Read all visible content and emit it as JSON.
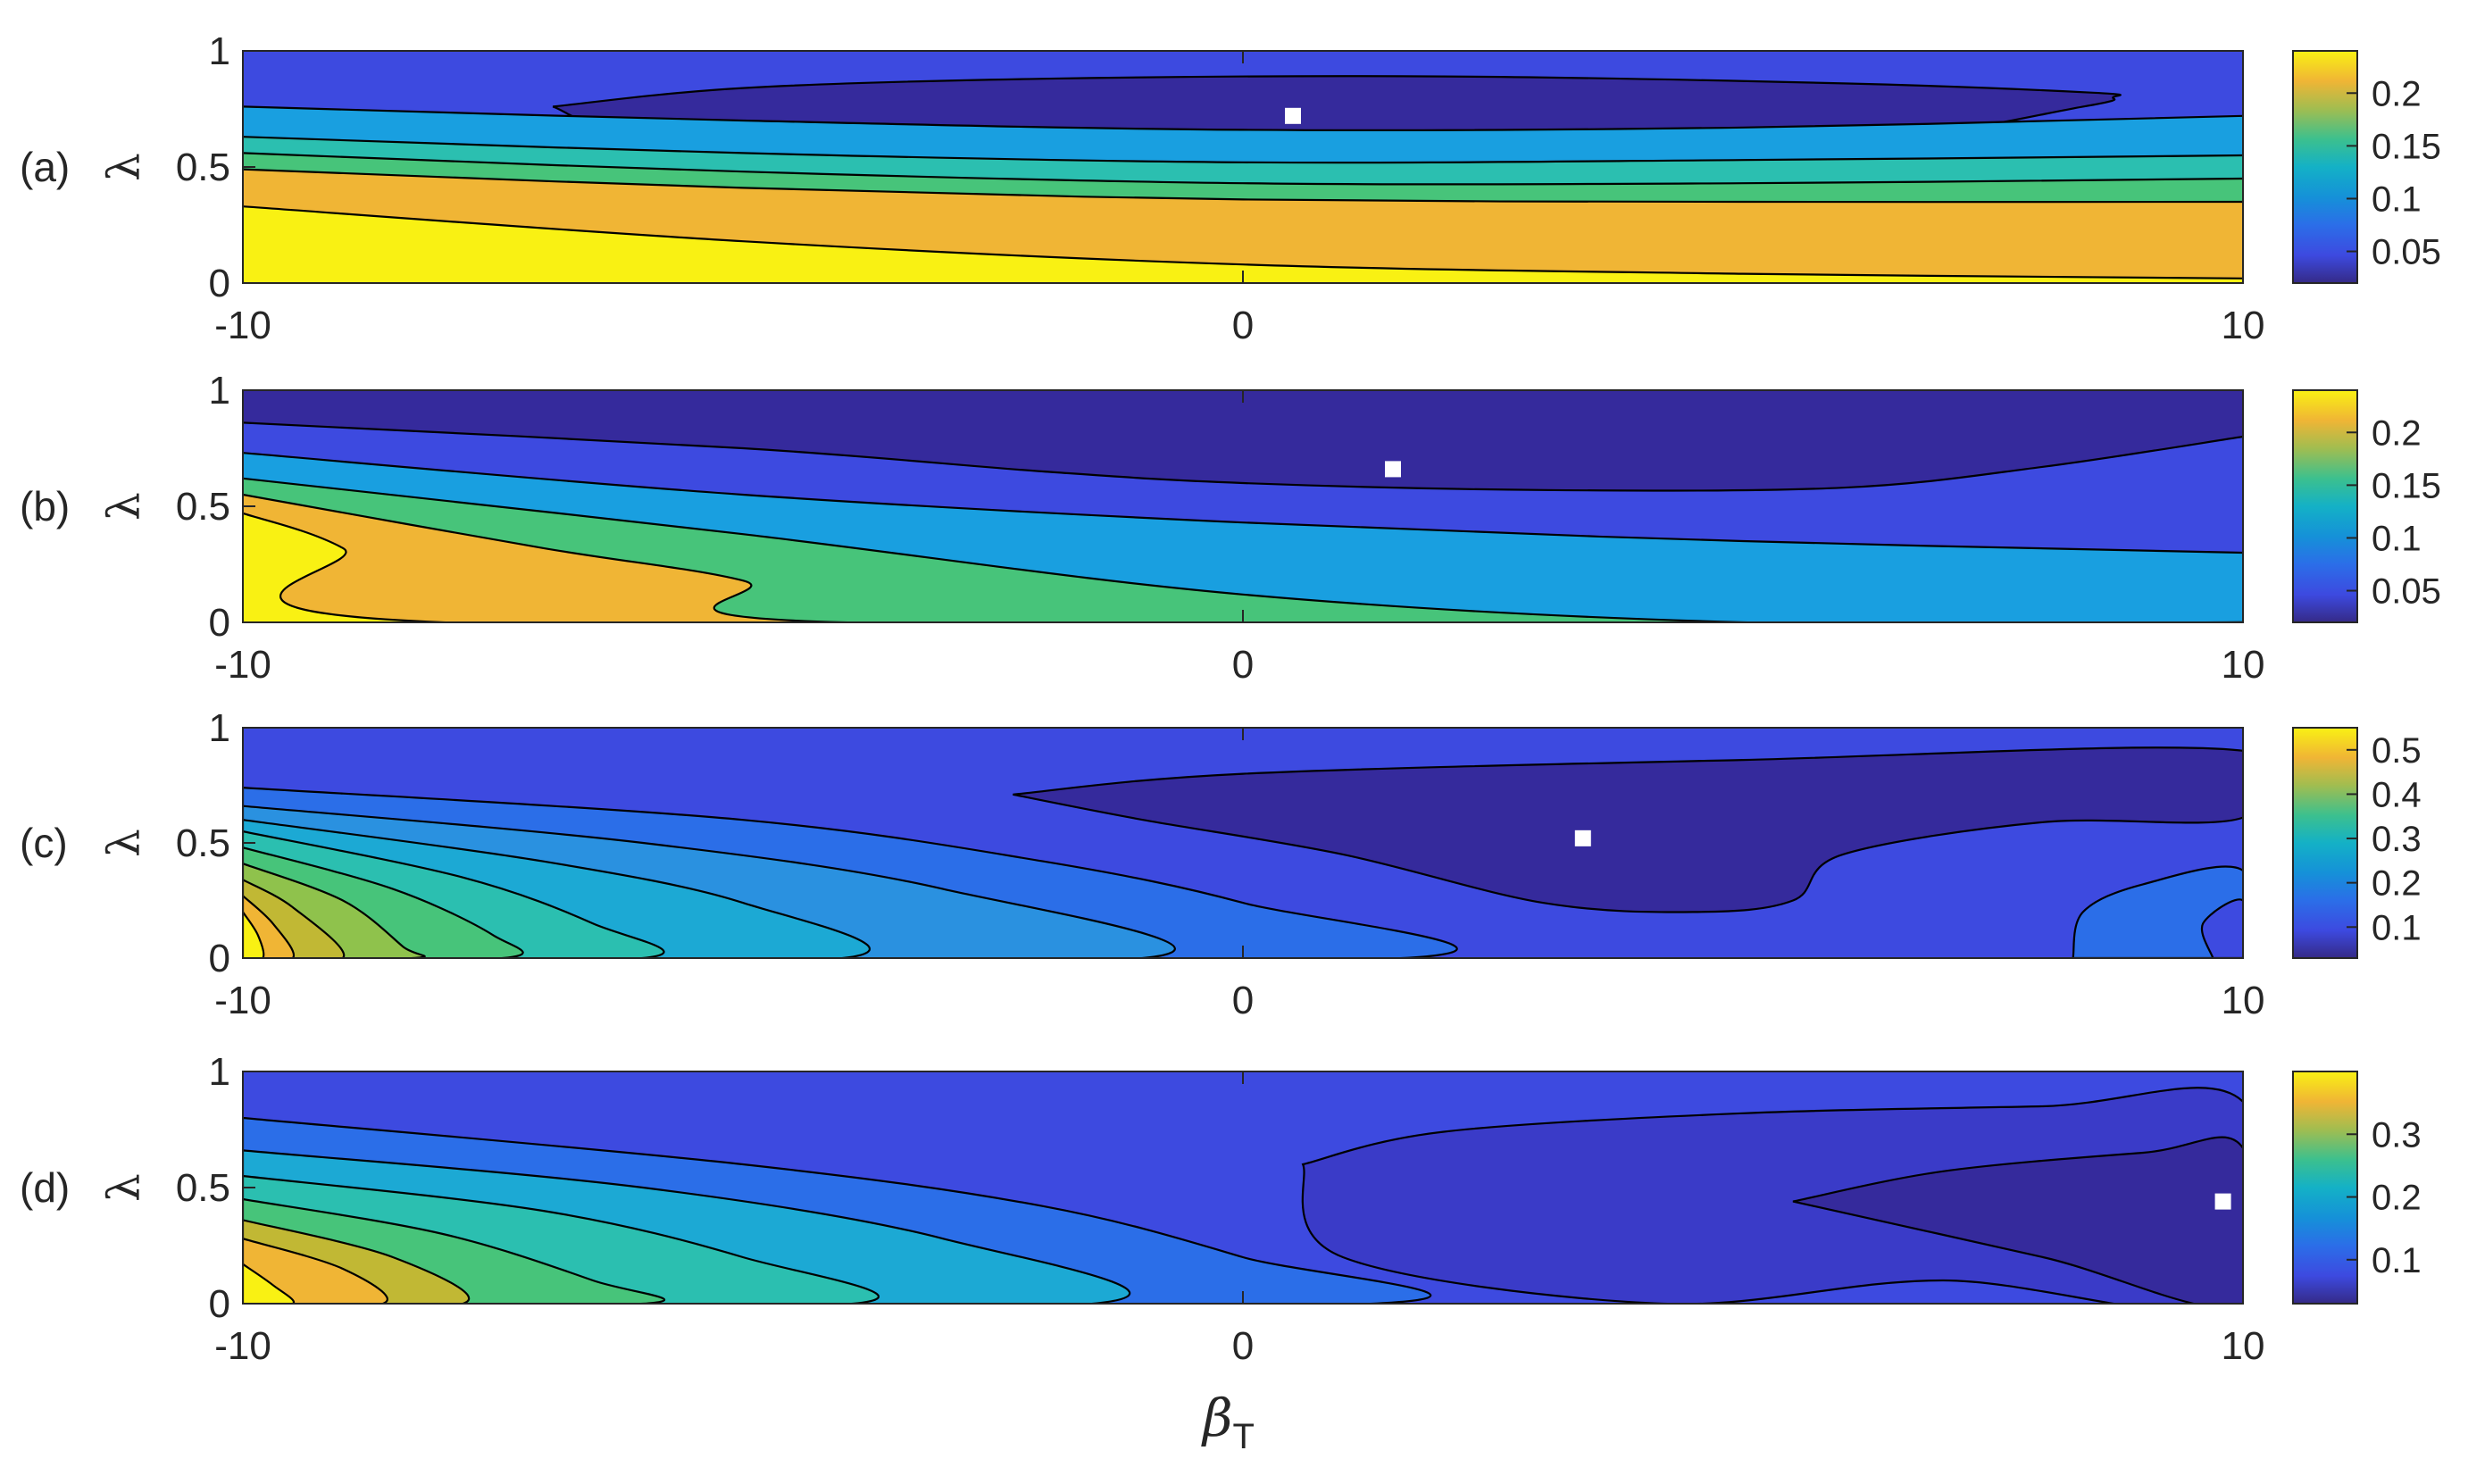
{
  "chart_data": [
    {
      "type": "contour",
      "panel_label": "(a)",
      "ylabel": "λ",
      "xlabel": "",
      "xlim": [
        -10,
        10
      ],
      "ylim": [
        0,
        1
      ],
      "xticks": [
        "-10",
        "0",
        "10"
      ],
      "yticks": [
        "0",
        "0.5",
        "1"
      ],
      "colorbar_ticks": [
        "0.05",
        "0.1",
        "0.15",
        "0.2"
      ],
      "colorbar_range": [
        0.02,
        0.24
      ],
      "marker": {
        "x": 0.5,
        "y": 0.72
      },
      "regions": [
        {
          "color": "#3d4ae0",
          "top": [
            [
              -10,
              1
            ],
            [
              10,
              1
            ]
          ]
        },
        {
          "color": "#352a9c",
          "top": [
            [
              -6.9,
              0.76
            ],
            [
              -5,
              0.84
            ],
            [
              -2,
              0.88
            ],
            [
              2,
              0.89
            ],
            [
              6,
              0.86
            ],
            [
              8.5,
              0.82
            ],
            [
              8.7,
              0.8
            ],
            [
              8.4,
              0.76
            ],
            [
              6,
              0.6
            ],
            [
              2,
              0.57
            ],
            [
              0,
              0.56
            ],
            [
              -3,
              0.57
            ],
            [
              -6,
              0.64
            ],
            [
              -6.9,
              0.76
            ]
          ],
          "closed": true
        },
        {
          "color": "#199fe0",
          "top": [
            [
              -10,
              0.76
            ],
            [
              -5,
              0.7
            ],
            [
              0,
              0.66
            ],
            [
              5,
              0.67
            ],
            [
              10,
              0.72
            ]
          ]
        },
        {
          "color": "#2bbfb0",
          "top": [
            [
              -10,
              0.63
            ],
            [
              -5,
              0.56
            ],
            [
              0,
              0.52
            ],
            [
              5,
              0.53
            ],
            [
              10,
              0.55
            ]
          ]
        },
        {
          "color": "#47c47a",
          "top": [
            [
              -10,
              0.56
            ],
            [
              -5,
              0.48
            ],
            [
              0,
              0.43
            ],
            [
              5,
              0.43
            ],
            [
              10,
              0.45
            ]
          ]
        },
        {
          "color": "#f0b535",
          "top": [
            [
              -10,
              0.49
            ],
            [
              -5,
              0.41
            ],
            [
              0,
              0.36
            ],
            [
              5,
              0.35
            ],
            [
              10,
              0.35
            ]
          ]
        },
        {
          "color": "#f9f113",
          "top": [
            [
              -10,
              0.33
            ],
            [
              -5,
              0.18
            ],
            [
              0,
              0.08
            ],
            [
              5,
              0.04
            ],
            [
              10,
              0.02
            ]
          ]
        }
      ]
    },
    {
      "type": "contour",
      "panel_label": "(b)",
      "ylabel": "λ",
      "xlabel": "",
      "xlim": [
        -10,
        10
      ],
      "ylim": [
        0,
        1
      ],
      "xticks": [
        "-10",
        "0",
        "10"
      ],
      "yticks": [
        "0",
        "0.5",
        "1"
      ],
      "colorbar_ticks": [
        "0.05",
        "0.1",
        "0.15",
        "0.2"
      ],
      "colorbar_range": [
        0.02,
        0.24
      ],
      "marker": {
        "x": 1.5,
        "y": 0.66
      },
      "regions": [
        {
          "color": "#352a9c",
          "top": [
            [
              -10,
              1
            ],
            [
              10,
              1
            ]
          ]
        },
        {
          "color": "#3d4ae0",
          "top": [
            [
              -10,
              0.86
            ],
            [
              -5,
              0.75
            ],
            [
              -2,
              0.65
            ],
            [
              0,
              0.6
            ],
            [
              3,
              0.57
            ],
            [
              6,
              0.58
            ],
            [
              8,
              0.67
            ],
            [
              10,
              0.8
            ]
          ]
        },
        {
          "color": "#199fe0",
          "top": [
            [
              -10,
              0.73
            ],
            [
              -5,
              0.55
            ],
            [
              0,
              0.43
            ],
            [
              5,
              0.35
            ],
            [
              10,
              0.3
            ]
          ]
        },
        {
          "color": "#47c47a",
          "top": [
            [
              -10,
              0.62
            ],
            [
              -5,
              0.38
            ],
            [
              0,
              0.12
            ],
            [
              5,
              0.0
            ],
            [
              10,
              0.0
            ]
          ]
        },
        {
          "color": "#f0b535",
          "top": [
            [
              -10,
              0.55
            ],
            [
              -7,
              0.32
            ],
            [
              -5,
              0.18
            ],
            [
              -4,
              0.0
            ],
            [
              10,
              0.0
            ]
          ]
        },
        {
          "color": "#f9f113",
          "top": [
            [
              -10,
              0.47
            ],
            [
              -9,
              0.32
            ],
            [
              -8,
              0.0
            ],
            [
              10,
              0.0
            ]
          ]
        }
      ]
    },
    {
      "type": "contour",
      "panel_label": "(c)",
      "ylabel": "λ",
      "xlabel": "",
      "xlim": [
        -10,
        10
      ],
      "ylim": [
        0,
        1
      ],
      "xticks": [
        "-10",
        "0",
        "10"
      ],
      "yticks": [
        "0",
        "0.5",
        "1"
      ],
      "colorbar_ticks": [
        "0.1",
        "0.2",
        "0.3",
        "0.4",
        "0.5"
      ],
      "colorbar_range": [
        0.03,
        0.55
      ],
      "marker": {
        "x": 3.4,
        "y": 0.52
      },
      "regions": [
        {
          "color": "#3d4ae0",
          "top": [
            [
              -10,
              1
            ],
            [
              10,
              1
            ]
          ]
        },
        {
          "color": "#352a9c",
          "top": [
            [
              -2.3,
              0.71
            ],
            [
              0,
              0.8
            ],
            [
              5,
              0.86
            ],
            [
              10,
              0.9
            ],
            [
              10,
              0.61
            ],
            [
              8,
              0.59
            ],
            [
              6,
              0.45
            ],
            [
              5.5,
              0.25
            ],
            [
              4.5,
              0.2
            ],
            [
              3,
              0.24
            ],
            [
              1,
              0.45
            ],
            [
              -1,
              0.6
            ],
            [
              -2.3,
              0.71
            ]
          ],
          "closed": true
        },
        {
          "color": "#2b6ee8",
          "top": [
            [
              8.3,
              0.0
            ],
            [
              8.4,
              0.2
            ],
            [
              9,
              0.32
            ],
            [
              10,
              0.38
            ],
            [
              10,
              0.0
            ]
          ],
          "closed": true
        },
        {
          "color": "#3d4ae0",
          "top": [
            [
              9.7,
              0.0
            ],
            [
              9.6,
              0.15
            ],
            [
              10,
              0.25
            ],
            [
              10,
              0.0
            ]
          ],
          "closed": true
        },
        {
          "color": "#2b6ee8",
          "top": [
            [
              -10,
              0.74
            ],
            [
              -5,
              0.6
            ],
            [
              -2,
              0.42
            ],
            [
              0,
              0.24
            ],
            [
              1.6,
              0.0
            ],
            [
              -10,
              0.0
            ]
          ],
          "closed": true
        },
        {
          "color": "#2a91e0",
          "top": [
            [
              -10,
              0.66
            ],
            [
              -6,
              0.5
            ],
            [
              -3,
              0.3
            ],
            [
              -1,
              0.0
            ],
            [
              -10,
              0.0
            ]
          ],
          "closed": true
        },
        {
          "color": "#1ca9d4",
          "top": [
            [
              -10,
              0.6
            ],
            [
              -7,
              0.42
            ],
            [
              -5,
              0.24
            ],
            [
              -4,
              0.0
            ],
            [
              -10,
              0.0
            ]
          ],
          "closed": true
        },
        {
          "color": "#2bbfb0",
          "top": [
            [
              -10,
              0.55
            ],
            [
              -7.8,
              0.35
            ],
            [
              -6.5,
              0.15
            ],
            [
              -6,
              0.0
            ],
            [
              -10,
              0.0
            ]
          ],
          "closed": true
        },
        {
          "color": "#47c47a",
          "top": [
            [
              -10,
              0.48
            ],
            [
              -8.5,
              0.3
            ],
            [
              -7.5,
              0.1
            ],
            [
              -7.4,
              0.0
            ],
            [
              -10,
              0.0
            ]
          ],
          "closed": true
        },
        {
          "color": "#8fc24c",
          "top": [
            [
              -10,
              0.41
            ],
            [
              -9,
              0.25
            ],
            [
              -8.4,
              0.05
            ],
            [
              -8.3,
              0.0
            ],
            [
              -10,
              0.0
            ]
          ],
          "closed": true
        },
        {
          "color": "#c1b834",
          "top": [
            [
              -10,
              0.34
            ],
            [
              -9.5,
              0.22
            ],
            [
              -9,
              0.0
            ],
            [
              -10,
              0.0
            ]
          ],
          "closed": true
        },
        {
          "color": "#f0b535",
          "top": [
            [
              -10,
              0.27
            ],
            [
              -9.7,
              0.15
            ],
            [
              -9.5,
              0.0
            ],
            [
              -10,
              0.0
            ]
          ],
          "closed": true
        },
        {
          "color": "#f9f113",
          "top": [
            [
              -10,
              0.2
            ],
            [
              -9.85,
              0.1
            ],
            [
              -9.8,
              0.0
            ],
            [
              -10,
              0.0
            ]
          ],
          "closed": true
        }
      ]
    },
    {
      "type": "contour",
      "panel_label": "(d)",
      "ylabel": "λ",
      "xlabel": "βT",
      "xlim": [
        -10,
        10
      ],
      "ylim": [
        0,
        1
      ],
      "xticks": [
        "-10",
        "0",
        "10"
      ],
      "yticks": [
        "0",
        "0.5",
        "1"
      ],
      "colorbar_ticks": [
        "0.1",
        "0.2",
        "0.3"
      ],
      "colorbar_range": [
        0.03,
        0.4
      ],
      "marker": {
        "x": 9.8,
        "y": 0.44
      },
      "regions": [
        {
          "color": "#3d4ae0",
          "top": [
            [
              -10,
              1
            ],
            [
              10,
              1
            ]
          ]
        },
        {
          "color": "#3a3bc8",
          "top": [
            [
              0.6,
              0.6
            ],
            [
              2,
              0.74
            ],
            [
              5,
              0.82
            ],
            [
              8,
              0.85
            ],
            [
              10,
              0.87
            ],
            [
              10,
              0.0
            ],
            [
              7,
              0.1
            ],
            [
              4.2,
              0.0
            ],
            [
              1,
              0.2
            ],
            [
              0.6,
              0.6
            ]
          ],
          "closed": true
        },
        {
          "color": "#352a9c",
          "top": [
            [
              5.5,
              0.44
            ],
            [
              7,
              0.57
            ],
            [
              9,
              0.65
            ],
            [
              10,
              0.67
            ],
            [
              10,
              0.0
            ],
            [
              8,
              0.2
            ],
            [
              5.5,
              0.44
            ]
          ],
          "closed": true
        },
        {
          "color": "#2b6ee8",
          "top": [
            [
              -10,
              0.8
            ],
            [
              -5,
              0.6
            ],
            [
              -2,
              0.42
            ],
            [
              0,
              0.2
            ],
            [
              1.3,
              0.0
            ],
            [
              -10,
              0.0
            ]
          ],
          "closed": true
        },
        {
          "color": "#1ca9d4",
          "top": [
            [
              -10,
              0.66
            ],
            [
              -6,
              0.5
            ],
            [
              -3,
              0.28
            ],
            [
              -1.5,
              0.0
            ],
            [
              -10,
              0.0
            ]
          ],
          "closed": true
        },
        {
          "color": "#2bbfb0",
          "top": [
            [
              -10,
              0.55
            ],
            [
              -7,
              0.4
            ],
            [
              -5,
              0.2
            ],
            [
              -3.9,
              0.0
            ],
            [
              -10,
              0.0
            ]
          ],
          "closed": true
        },
        {
          "color": "#47c47a",
          "top": [
            [
              -10,
              0.45
            ],
            [
              -8,
              0.3
            ],
            [
              -6.5,
              0.1
            ],
            [
              -6,
              0.0
            ],
            [
              -10,
              0.0
            ]
          ],
          "closed": true
        },
        {
          "color": "#c1b834",
          "top": [
            [
              -10,
              0.36
            ],
            [
              -8.5,
              0.2
            ],
            [
              -7.8,
              0.0
            ],
            [
              -10,
              0.0
            ]
          ],
          "closed": true
        },
        {
          "color": "#f0b535",
          "top": [
            [
              -10,
              0.28
            ],
            [
              -9,
              0.15
            ],
            [
              -8.6,
              0.0
            ],
            [
              -10,
              0.0
            ]
          ],
          "closed": true
        },
        {
          "color": "#f9f113",
          "top": [
            [
              -10,
              0.17
            ],
            [
              -9.7,
              0.08
            ],
            [
              -9.5,
              0.0
            ],
            [
              -10,
              0.0
            ]
          ],
          "closed": true
        }
      ]
    }
  ]
}
